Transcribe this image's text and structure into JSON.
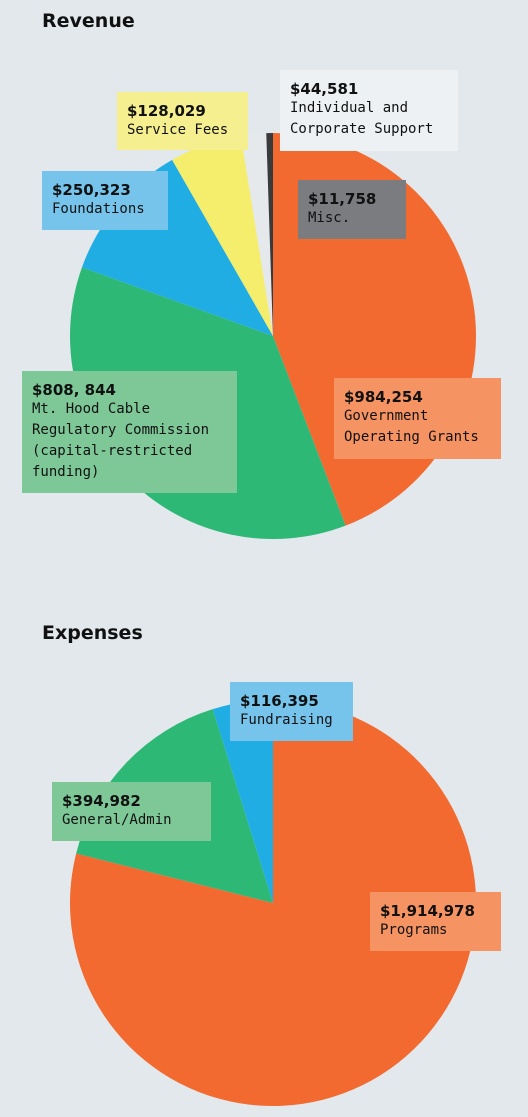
{
  "chart_data": [
    {
      "type": "pie",
      "title": "Revenue",
      "slices": [
        {
          "value": 984254,
          "amount_label": "$984,254",
          "label": "Government\nOperating Grants",
          "color": "#f26a30",
          "label_color": "#f69363"
        },
        {
          "value": 808844,
          "amount_label": "$808, 844",
          "label": "Mt. Hood Cable\nRegulatory Commission\n(capital-restricted\nfunding)",
          "color": "#2db876",
          "label_color": "#7ec898"
        },
        {
          "value": 250323,
          "amount_label": "$250,323",
          "label": "Foundations",
          "color": "#20ade3",
          "label_color": "#76c4eb"
        },
        {
          "value": 128029,
          "amount_label": "$128,029",
          "label": "Service Fees",
          "color": "#f4ee6c",
          "label_color": "#f6ef90"
        },
        {
          "value": 44581,
          "amount_label": "$44,581",
          "label": "Individual and\nCorporate Support",
          "color": "#e5e9ec",
          "label_color": "#eef1f3"
        },
        {
          "value": 11758,
          "amount_label": "$11,758",
          "label": "Misc.",
          "color": "#3a3a3c",
          "label_color": "#7a7c80"
        }
      ]
    },
    {
      "type": "pie",
      "title": "Expenses",
      "slices": [
        {
          "value": 1914978,
          "amount_label": "$1,914,978",
          "label": "Programs",
          "color": "#f26a30",
          "label_color": "#f69363"
        },
        {
          "value": 394982,
          "amount_label": "$394,982",
          "label": "General/Admin",
          "color": "#2db876",
          "label_color": "#7ec898"
        },
        {
          "value": 116395,
          "amount_label": "$116,395",
          "label": "Fundraising",
          "color": "#20ade3",
          "label_color": "#76c4eb"
        }
      ]
    }
  ]
}
